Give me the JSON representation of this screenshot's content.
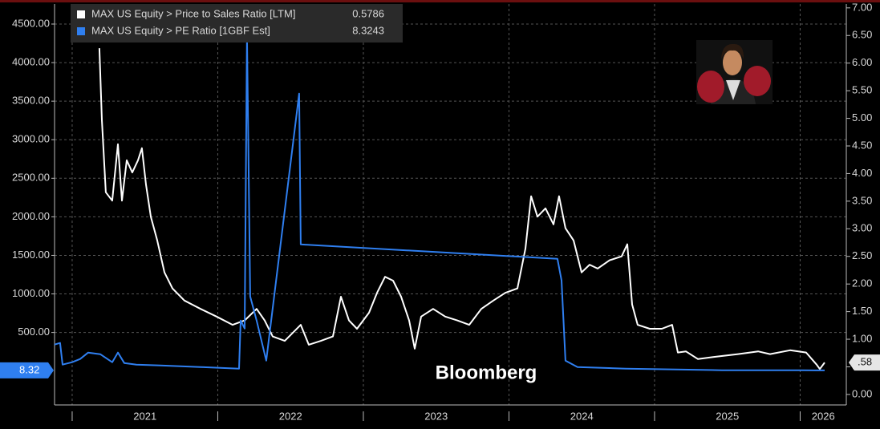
{
  "chart_data": {
    "type": "line",
    "watermark": "Bloomberg",
    "legend": "upper left",
    "grid": true,
    "xlim": [
      2020.879,
      2026.317
    ],
    "xticks": [
      2021,
      2022,
      2023,
      2024,
      2025,
      2026
    ],
    "ylim": [
      -440,
      4760
    ],
    "yticks": [
      {
        "value": 500,
        "label": "500.00"
      },
      {
        "value": 1000,
        "label": "1000.00"
      },
      {
        "value": 1500,
        "label": "1500.00"
      },
      {
        "value": 2000,
        "label": "2000.00"
      },
      {
        "value": 2500,
        "label": "2500.00"
      },
      {
        "value": 3000,
        "label": "3000.00"
      },
      {
        "value": 3500,
        "label": "3500.00"
      },
      {
        "value": 4000,
        "label": "4000.00"
      },
      {
        "value": 4500,
        "label": "4500.00"
      }
    ],
    "y2lim": [
      -0.19,
      7.07
    ],
    "y2ticks": [
      {
        "value": 0,
        "label": "0.00"
      },
      {
        "value": 0.5,
        "label": "0.50"
      },
      {
        "value": 1,
        "label": "1.00"
      },
      {
        "value": 1.5,
        "label": "1.50"
      },
      {
        "value": 2,
        "label": "2.00"
      },
      {
        "value": 2.5,
        "label": "2.50"
      },
      {
        "value": 3,
        "label": "3.00"
      },
      {
        "value": 3.5,
        "label": "3.50"
      },
      {
        "value": 4,
        "label": "4.00"
      },
      {
        "value": 4.5,
        "label": "4.50"
      },
      {
        "value": 5,
        "label": "5.00"
      },
      {
        "value": 5.5,
        "label": "5.50"
      },
      {
        "value": 6,
        "label": "6.00"
      },
      {
        "value": 6.5,
        "label": "6.50"
      },
      {
        "value": 7,
        "label": "7.00"
      }
    ],
    "series": [
      {
        "name": "MAX US Equity > Price to Sales Ratio [LTM]",
        "color": "#ffffff",
        "axis": "y2",
        "last_value": {
          "value": 0.5786,
          "label": ".58"
        },
        "x": [
          2021.187,
          2021.204,
          2021.231,
          2021.275,
          2021.314,
          2021.342,
          2021.375,
          2021.413,
          2021.452,
          2021.479,
          2021.507,
          2021.54,
          2021.584,
          2021.634,
          2021.689,
          2021.771,
          2021.882,
          2021.992,
          2022.102,
          2022.185,
          2022.267,
          2022.322,
          2022.377,
          2022.46,
          2022.57,
          2022.625,
          2022.708,
          2022.791,
          2022.846,
          2022.901,
          2022.956,
          2023.039,
          2023.094,
          2023.149,
          2023.204,
          2023.259,
          2023.314,
          2023.353,
          2023.397,
          2023.479,
          2023.562,
          2023.645,
          2023.727,
          2023.81,
          2023.893,
          2023.975,
          2024.058,
          2024.113,
          2024.152,
          2024.196,
          2024.251,
          2024.306,
          2024.344,
          2024.388,
          2024.444,
          2024.499,
          2024.554,
          2024.609,
          2024.691,
          2024.774,
          2024.813,
          2024.846,
          2024.884,
          2024.967,
          2025.05,
          2025.121,
          2025.16,
          2025.215,
          2025.298,
          2025.408,
          2025.573,
          2025.711,
          2025.793,
          2025.931,
          2026.041,
          2026.113,
          2026.135,
          2026.168
        ],
        "values": [
          6.27,
          4.97,
          3.66,
          3.51,
          4.53,
          3.51,
          4.24,
          4.02,
          4.24,
          4.46,
          3.8,
          3.22,
          2.79,
          2.21,
          1.92,
          1.7,
          1.55,
          1.41,
          1.26,
          1.34,
          1.55,
          1.34,
          1.05,
          0.97,
          1.26,
          0.9,
          0.97,
          1.05,
          1.77,
          1.34,
          1.19,
          1.48,
          1.84,
          2.13,
          2.06,
          1.77,
          1.34,
          0.83,
          1.41,
          1.55,
          1.41,
          1.34,
          1.26,
          1.55,
          1.7,
          1.84,
          1.92,
          2.64,
          3.59,
          3.22,
          3.37,
          3.08,
          3.59,
          3.01,
          2.79,
          2.21,
          2.35,
          2.28,
          2.43,
          2.5,
          2.72,
          1.63,
          1.26,
          1.19,
          1.19,
          1.26,
          0.76,
          0.78,
          0.64,
          0.68,
          0.73,
          0.78,
          0.73,
          0.8,
          0.76,
          0.54,
          0.46,
          0.5786
        ]
      },
      {
        "name": "MAX US Equity > PE Ratio [1GBF Est]",
        "color": "#2f7ff0",
        "axis": "y",
        "last_value": {
          "value": 8.3243,
          "label": "8.32"
        },
        "x": [
          2020.879,
          2020.917,
          2020.934,
          2021.0,
          2021.055,
          2021.11,
          2021.193,
          2021.275,
          2021.314,
          2021.358,
          2021.441,
          2021.606,
          2021.882,
          2022.146,
          2022.157,
          2022.185,
          2022.201,
          2022.223,
          2022.267,
          2022.333,
          2022.559,
          2022.57,
          2024.333,
          2024.361,
          2024.388,
          2024.471,
          2024.802,
          2025.463,
          2026.014,
          2026.168
        ],
        "values": [
          343,
          364,
          83,
          114,
          156,
          239,
          218,
          114,
          239,
          104,
          83,
          73,
          52,
          31,
          655,
          551,
          4345,
          967,
          655,
          135,
          3597,
          1642,
          1455,
          1175,
          135,
          52,
          31,
          10,
          10,
          8.3243
        ]
      }
    ]
  }
}
